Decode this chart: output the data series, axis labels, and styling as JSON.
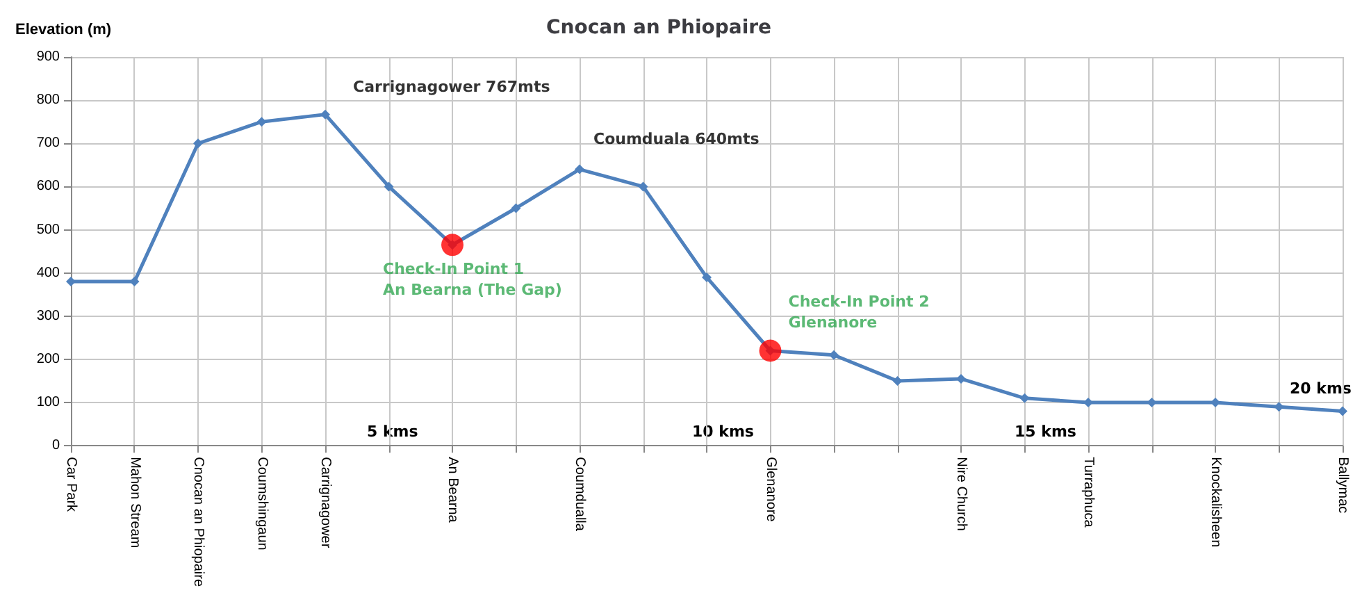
{
  "chart_data": {
    "type": "line",
    "title": "Cnocan an Phiopaire",
    "ylabel": "Elevation (m)",
    "categories": [
      "Car Park",
      "Mahon Stream",
      "Cnocan an Phiopaire",
      "Coumshingaun",
      "Carrignagower",
      null,
      "An Bearna",
      null,
      "Coumdualla",
      null,
      null,
      "Glenanore",
      null,
      null,
      "Nire Church",
      null,
      "Turraphuca",
      null,
      "Knockalisheen",
      null,
      "Ballymac"
    ],
    "series": [
      {
        "color": "#4f81bd",
        "marker": "diamond",
        "values": [
          380,
          380,
          700,
          750,
          767,
          600,
          465,
          550,
          640,
          600,
          390,
          220,
          210,
          150,
          155,
          110,
          100,
          100,
          100,
          90,
          80
        ]
      },
      {
        "type": "scatter",
        "color": "#ff0000",
        "marker": "circle",
        "x": [
          "An Bearna",
          "Glenanore"
        ],
        "values": [
          465,
          220
        ]
      }
    ],
    "ylim": [
      0,
      900
    ],
    "yticks": [
      0,
      100,
      200,
      300,
      400,
      500,
      600,
      700,
      800,
      900
    ],
    "grid": true,
    "annotations": [
      {
        "text": "Carrignagower 767mts",
        "x": "Carrignagower",
        "y": 767
      },
      {
        "text": "Coumduala 640mts",
        "x": "Coumdualla",
        "y": 640
      },
      {
        "text": "Check-In Point 1\nAn Bearna (The Gap)",
        "x": "An Bearna",
        "y": 465
      },
      {
        "text": "Check-In Point 2\nGlenanore",
        "x": "Glenanore",
        "y": 220
      },
      "5 kms",
      "10 kms",
      "15 kms",
      "20 kms"
    ]
  }
}
